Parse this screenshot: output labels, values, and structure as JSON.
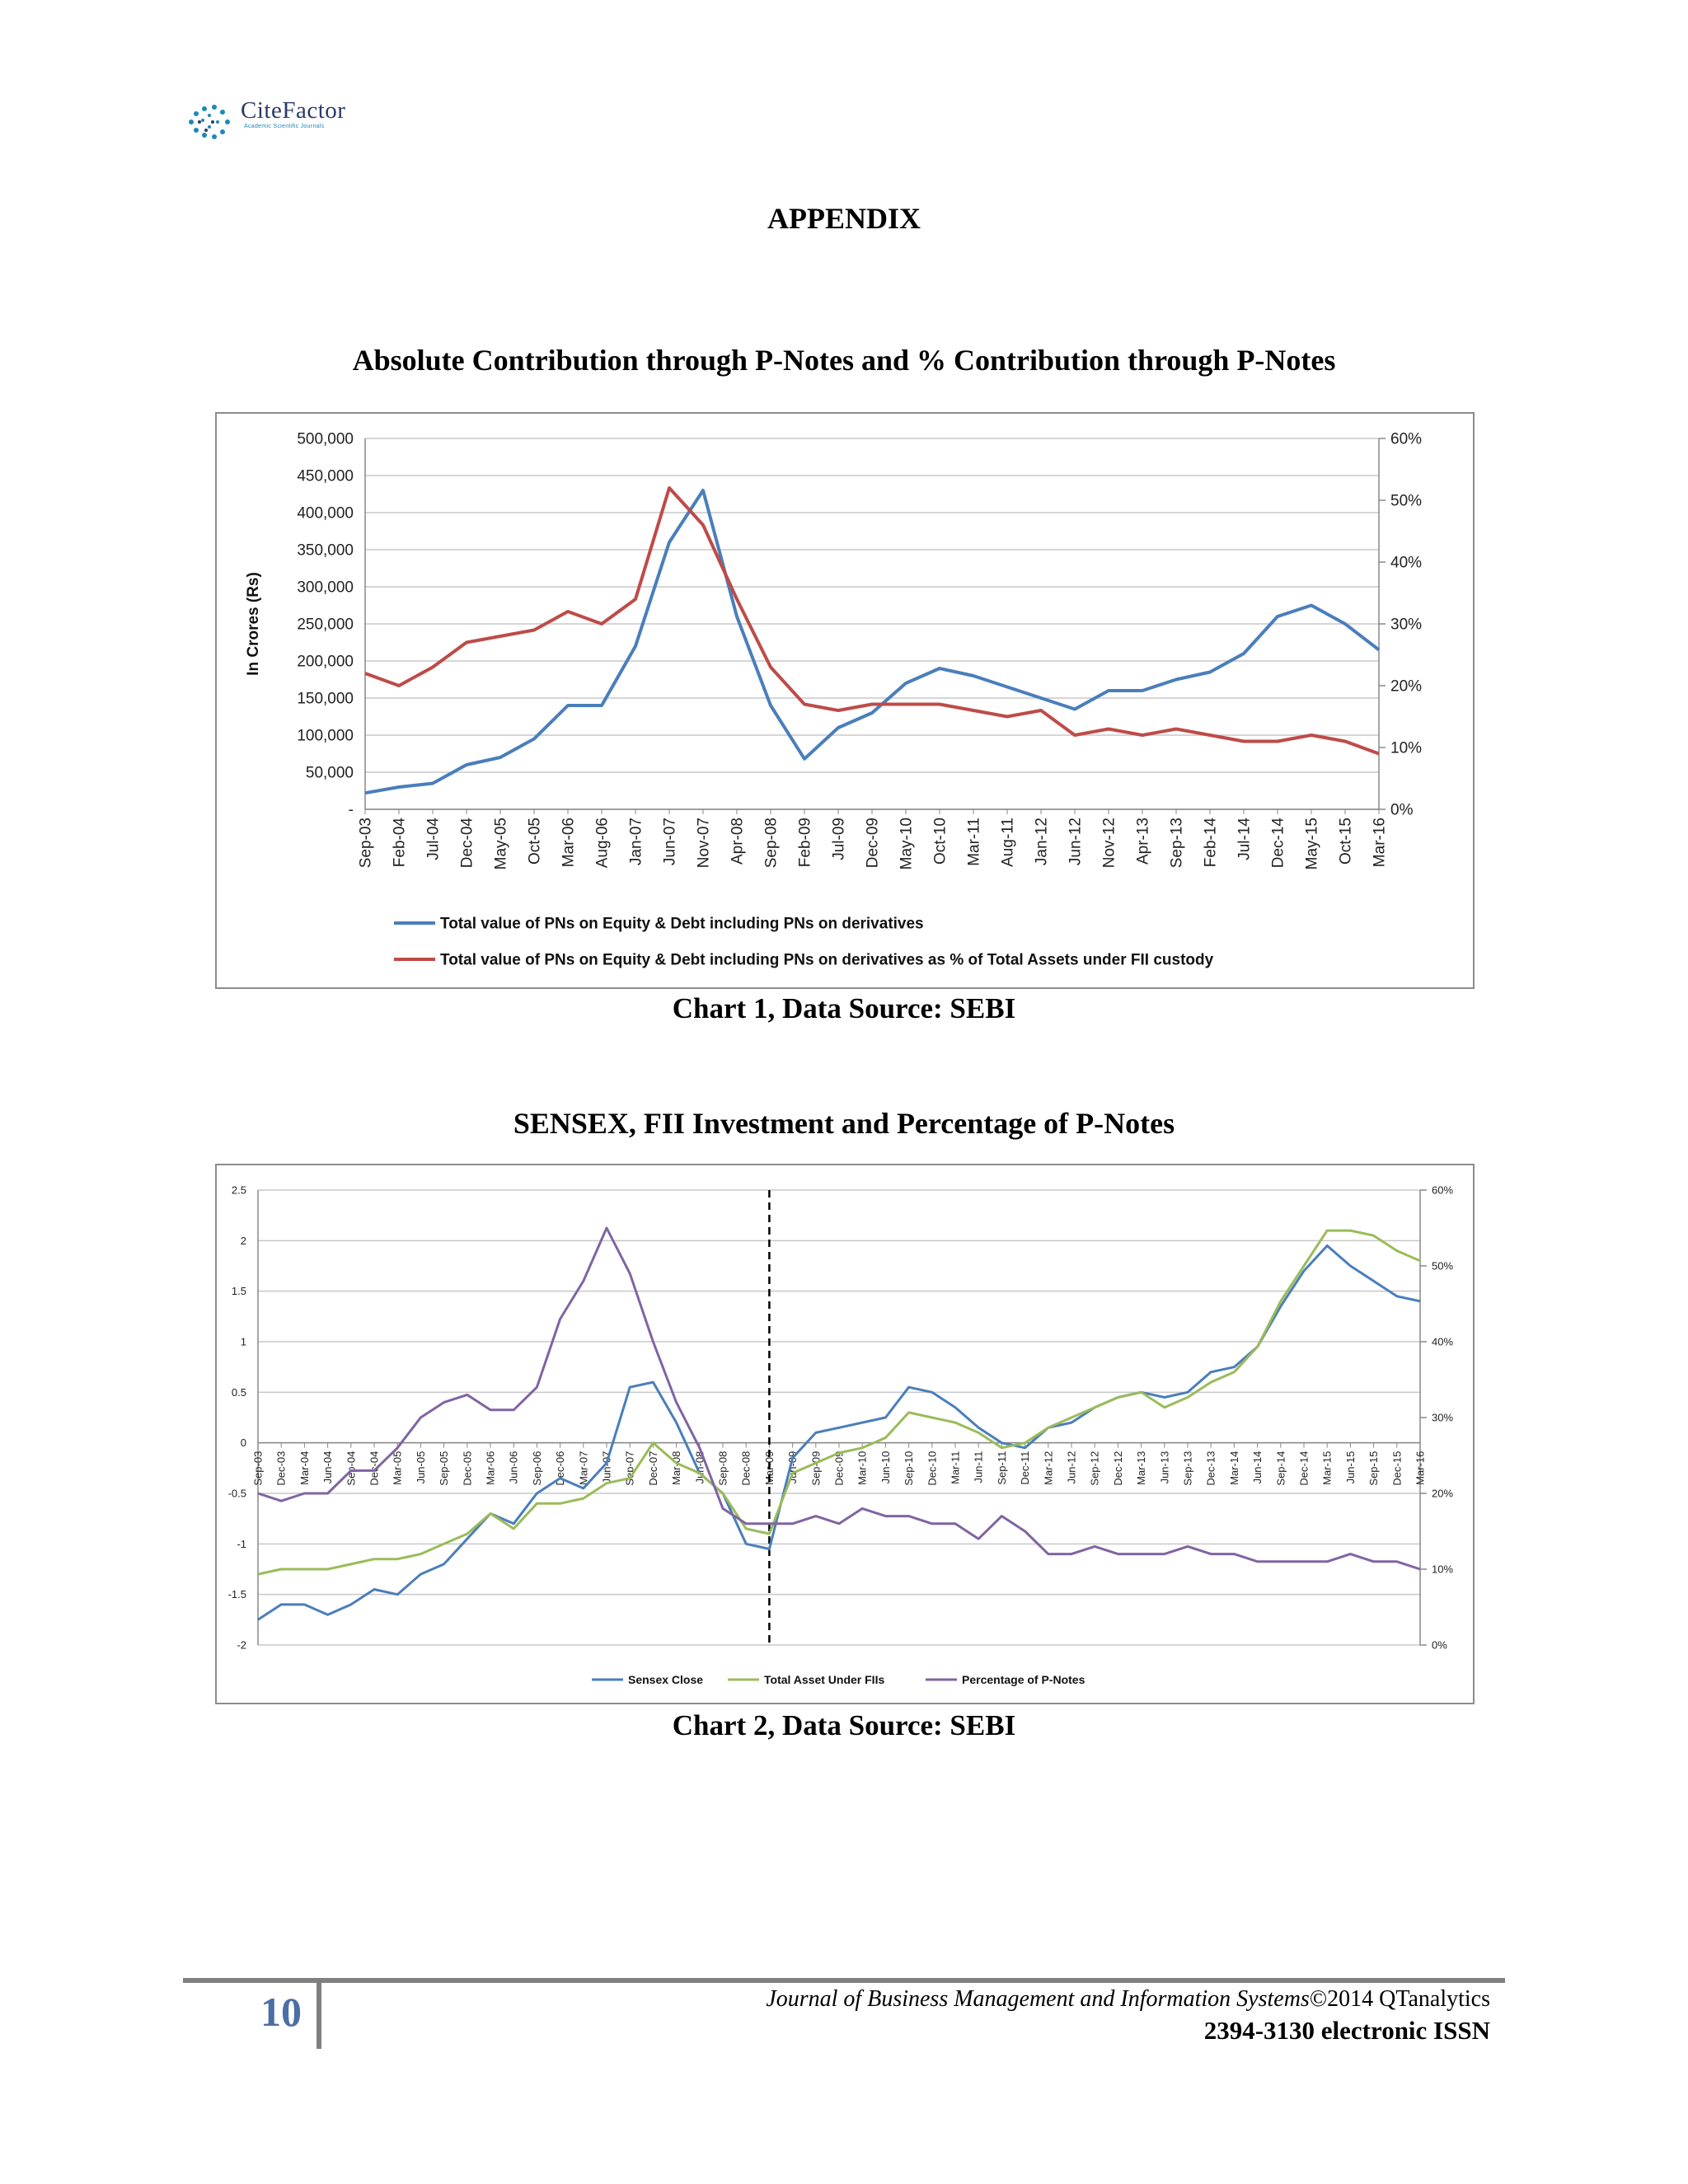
{
  "header": {
    "logo_name": "CiteFactor",
    "logo_tagline": "Academic Scientific Journals"
  },
  "appendix_title": "APPENDIX",
  "chart1_heading": "Absolute Contribution through P-Notes and % Contribution through P-Notes",
  "chart1_caption": "Chart 1, Data Source: SEBI",
  "chart2_heading": "SENSEX, FII Investment and Percentage of P-Notes",
  "chart2_caption": "Chart 2, Data Source: SEBI",
  "footer": {
    "page_number": "10",
    "journal": "Journal of Business Management and Information Systems",
    "copyright": "©2014 QTanalytics",
    "issn": "2394-3130 electronic ISSN"
  },
  "chart_data": [
    {
      "type": "line",
      "ylabel": "In Crores (Rs)",
      "y_ticks": [
        "500,000",
        "450,000",
        "400,000",
        "350,000",
        "300,000",
        "250,000",
        "200,000",
        "150,000",
        "100,000",
        "50,000",
        "-"
      ],
      "y2_ticks": [
        "60%",
        "50%",
        "40%",
        "30%",
        "20%",
        "10%",
        "0%"
      ],
      "ylim": [
        0,
        500000
      ],
      "y2lim": [
        0,
        60
      ],
      "categories": [
        "Sep-03",
        "Feb-04",
        "Jul-04",
        "Dec-04",
        "May-05",
        "Oct-05",
        "Mar-06",
        "Aug-06",
        "Jan-07",
        "Jun-07",
        "Nov-07",
        "Apr-08",
        "Sep-08",
        "Feb-09",
        "Jul-09",
        "Dec-09",
        "May-10",
        "Oct-10",
        "Mar-11",
        "Aug-11",
        "Jan-12",
        "Jun-12",
        "Nov-12",
        "Apr-13",
        "Sep-13",
        "Feb-14",
        "Jul-14",
        "Dec-14",
        "May-15",
        "Oct-15",
        "Mar-16"
      ],
      "series": [
        {
          "name": "Total value of PNs on Equity & Debt including PNs on derivatives",
          "color": "#4a7ebb",
          "axis": "left",
          "values": [
            22000,
            30000,
            35000,
            60000,
            70000,
            95000,
            140000,
            140000,
            220000,
            360000,
            430000,
            260000,
            140000,
            68000,
            110000,
            130000,
            170000,
            190000,
            180000,
            165000,
            150000,
            135000,
            160000,
            160000,
            175000,
            185000,
            210000,
            260000,
            275000,
            250000,
            215000
          ]
        },
        {
          "name": "Total value of PNs on Equity & Debt including PNs  on derivatives as % of Total Assets under FII custody",
          "color": "#be4b48",
          "axis": "right",
          "values": [
            22,
            20,
            23,
            27,
            28,
            29,
            32,
            30,
            34,
            52,
            46,
            34,
            23,
            17,
            16,
            17,
            17,
            17,
            16,
            15,
            16,
            12,
            13,
            12,
            13,
            12,
            11,
            11,
            12,
            11,
            9
          ]
        }
      ]
    },
    {
      "type": "line",
      "y_ticks": [
        "2.5",
        "2",
        "1.5",
        "1",
        "0.5",
        "0",
        "-0.5",
        "-1",
        "-1.5",
        "-2"
      ],
      "y2_ticks": [
        "60%",
        "50%",
        "40%",
        "30%",
        "20%",
        "10%",
        "0%"
      ],
      "ylim": [
        -2,
        2.5
      ],
      "y2lim": [
        0,
        60
      ],
      "categories": [
        "Sep-03",
        "Dec-03",
        "Mar-04",
        "Jun-04",
        "Sep-04",
        "Dec-04",
        "Mar-05",
        "Jun-05",
        "Sep-05",
        "Dec-05",
        "Mar-06",
        "Jun-06",
        "Sep-06",
        "Dec-06",
        "Mar-07",
        "Jun-07",
        "Sep-07",
        "Dec-07",
        "Mar-08",
        "Jun-08",
        "Sep-08",
        "Dec-08",
        "Mar-09",
        "Jun-09",
        "Sep-09",
        "Dec-09",
        "Mar-10",
        "Jun-10",
        "Sep-10",
        "Dec-10",
        "Mar-11",
        "Jun-11",
        "Sep-11",
        "Dec-11",
        "Mar-12",
        "Jun-12",
        "Sep-12",
        "Dec-12",
        "Mar-13",
        "Jun-13",
        "Sep-13",
        "Dec-13",
        "Mar-14",
        "Jun-14",
        "Sep-14",
        "Dec-14",
        "Mar-15",
        "Jun-15",
        "Sep-15",
        "Dec-15",
        "Mar-16"
      ],
      "series": [
        {
          "name": "Sensex Close",
          "color": "#4a7ebb",
          "axis": "left",
          "values": [
            -1.75,
            -1.6,
            -1.6,
            -1.7,
            -1.6,
            -1.45,
            -1.5,
            -1.3,
            -1.2,
            -0.95,
            -0.7,
            -0.8,
            -0.5,
            -0.35,
            -0.45,
            -0.2,
            0.55,
            0.6,
            0.2,
            -0.3,
            -0.5,
            -1.0,
            -1.05,
            -0.15,
            0.1,
            0.15,
            0.2,
            0.25,
            0.55,
            0.5,
            0.35,
            0.15,
            0.0,
            -0.05,
            0.15,
            0.2,
            0.35,
            0.45,
            0.5,
            0.45,
            0.5,
            0.7,
            0.75,
            0.95,
            1.35,
            1.7,
            1.95,
            1.75,
            1.6,
            1.45,
            1.4
          ]
        },
        {
          "name": "Total Asset Under FIIs",
          "color": "#9bbb59",
          "axis": "left",
          "values": [
            -1.3,
            -1.25,
            -1.25,
            -1.25,
            -1.2,
            -1.15,
            -1.15,
            -1.1,
            -1.0,
            -0.9,
            -0.7,
            -0.85,
            -0.6,
            -0.6,
            -0.55,
            -0.4,
            -0.35,
            0.0,
            -0.2,
            -0.3,
            -0.5,
            -0.85,
            -0.9,
            -0.3,
            -0.2,
            -0.1,
            -0.05,
            0.05,
            0.3,
            0.25,
            0.2,
            0.1,
            -0.05,
            0.0,
            0.15,
            0.25,
            0.35,
            0.45,
            0.5,
            0.35,
            0.45,
            0.6,
            0.7,
            0.95,
            1.4,
            1.75,
            2.1,
            2.1,
            2.05,
            1.9,
            1.8
          ]
        },
        {
          "name": "Percentage of P-Notes",
          "color": "#8064a2",
          "axis": "right",
          "values": [
            20,
            19,
            20,
            20,
            23,
            23,
            26,
            30,
            32,
            33,
            31,
            31,
            34,
            43,
            48,
            55,
            49,
            40,
            32,
            26,
            18,
            16,
            16,
            16,
            17,
            16,
            18,
            17,
            17,
            16,
            16,
            14,
            17,
            15,
            12,
            12,
            13,
            12,
            12,
            12,
            13,
            12,
            12,
            11,
            11,
            11,
            11,
            12,
            11,
            11,
            10
          ]
        }
      ],
      "divider_at": "Mar-09"
    }
  ]
}
